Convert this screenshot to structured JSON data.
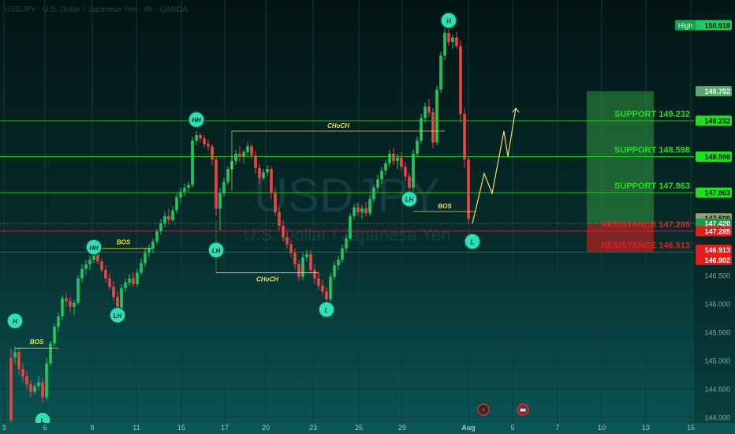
{
  "header": {
    "symbol_line": "USDJPY · U.S. Dollar / Japanese Yen · 4h · OANDA"
  },
  "watermark": {
    "ticker": "USDJPY",
    "name": "U.S. Dollar / Japanese Yen"
  },
  "colors": {
    "up": "#22c55e",
    "down": "#ef4444",
    "support": "#22dd22",
    "resistance": "#e02020",
    "annotation": "#e8e25a",
    "marker_fill": "#2de0b5"
  },
  "chart_data": {
    "type": "candlestick",
    "title": "",
    "xlabel": "",
    "ylabel": "",
    "ylim": [
      143.9,
      151.25
    ],
    "x_ticks": [
      "3",
      "6",
      "9",
      "11",
      "15",
      "17",
      "20",
      "23",
      "25",
      "29",
      "Aug",
      "5",
      "7",
      "10",
      "13",
      "15"
    ],
    "y_ticks": [
      144.0,
      144.5,
      145.0,
      145.5,
      146.0,
      146.5
    ],
    "price_badges": [
      {
        "label": "High",
        "value": "150.918",
        "kind": "high"
      },
      {
        "value": "149.752",
        "kind": "target"
      },
      {
        "value": "149.232",
        "kind": "support"
      },
      {
        "value": "148.598",
        "kind": "support"
      },
      {
        "value": "147.963",
        "kind": "support"
      },
      {
        "value": "147.509",
        "kind": "last"
      },
      {
        "value": "147.420",
        "kind": "level"
      },
      {
        "value": "147.285",
        "kind": "resistance"
      },
      {
        "value": "146.913",
        "kind": "resistance"
      },
      {
        "value": "146.902",
        "kind": "resistance"
      }
    ],
    "levels": [
      {
        "label": "SUPPORT  149.232",
        "value": 149.232,
        "type": "support"
      },
      {
        "label": "SUPPORT  148.598",
        "value": 148.598,
        "type": "support"
      },
      {
        "label": "SUPPORT  147.963",
        "value": 147.963,
        "type": "support"
      },
      {
        "label": "RESISTANCE  147.285",
        "value": 147.285,
        "type": "resistance"
      },
      {
        "label": "RESISTANCE  146.913",
        "value": 146.913,
        "type": "resistance"
      }
    ],
    "zones": [
      {
        "type": "target",
        "from": 147.42,
        "to": 149.752,
        "x_start": 146,
        "x_end": 163
      },
      {
        "type": "stop",
        "from": 146.913,
        "to": 147.42,
        "x_start": 146,
        "x_end": 163
      }
    ],
    "candles": [
      [
        145.05,
        145.22,
        143.72,
        143.95
      ],
      [
        145.05,
        145.25,
        144.95,
        145.15
      ],
      [
        145.15,
        145.22,
        144.75,
        144.85
      ],
      [
        144.85,
        144.95,
        144.62,
        144.72
      ],
      [
        144.72,
        144.82,
        144.5,
        144.58
      ],
      [
        144.58,
        144.65,
        144.35,
        144.45
      ],
      [
        144.45,
        144.6,
        144.4,
        144.55
      ],
      [
        144.55,
        144.72,
        144.48,
        144.62
      ],
      [
        144.62,
        144.7,
        144.25,
        144.35
      ],
      [
        144.35,
        145.05,
        144.3,
        144.95
      ],
      [
        144.95,
        145.35,
        144.9,
        145.3
      ],
      [
        145.3,
        145.65,
        145.25,
        145.6
      ],
      [
        145.6,
        145.85,
        145.5,
        145.78
      ],
      [
        145.78,
        146.15,
        145.72,
        146.1
      ],
      [
        146.1,
        146.2,
        145.95,
        146.05
      ],
      [
        146.05,
        146.12,
        145.85,
        145.95
      ],
      [
        145.95,
        146.08,
        145.8,
        146.02
      ],
      [
        146.02,
        146.5,
        145.98,
        146.45
      ],
      [
        146.45,
        146.7,
        146.38,
        146.62
      ],
      [
        146.62,
        146.78,
        146.52,
        146.7
      ],
      [
        146.7,
        146.85,
        146.6,
        146.78
      ],
      [
        146.78,
        146.98,
        146.72,
        146.9
      ],
      [
        146.9,
        146.98,
        146.7,
        146.75
      ],
      [
        146.75,
        146.8,
        146.55,
        146.6
      ],
      [
        146.6,
        146.68,
        146.38,
        146.45
      ],
      [
        146.45,
        146.55,
        146.25,
        146.3
      ],
      [
        146.3,
        146.4,
        146.05,
        146.12
      ],
      [
        146.12,
        146.22,
        145.72,
        145.85
      ],
      [
        145.85,
        146.35,
        145.8,
        146.28
      ],
      [
        146.28,
        146.45,
        146.2,
        146.38
      ],
      [
        146.38,
        146.52,
        146.32,
        146.45
      ],
      [
        146.45,
        146.55,
        146.3,
        146.35
      ],
      [
        146.35,
        146.62,
        146.3,
        146.55
      ],
      [
        146.55,
        146.8,
        146.5,
        146.72
      ],
      [
        146.72,
        146.98,
        146.65,
        146.9
      ],
      [
        146.9,
        147.05,
        146.82,
        146.98
      ],
      [
        146.98,
        147.15,
        146.9,
        147.1
      ],
      [
        147.1,
        147.32,
        147.05,
        147.28
      ],
      [
        147.28,
        147.5,
        147.22,
        147.42
      ],
      [
        147.42,
        147.62,
        147.35,
        147.55
      ],
      [
        147.55,
        147.68,
        147.4,
        147.48
      ],
      [
        147.48,
        147.72,
        147.45,
        147.65
      ],
      [
        147.65,
        147.95,
        147.6,
        147.88
      ],
      [
        147.88,
        148.05,
        147.78,
        147.98
      ],
      [
        147.98,
        148.12,
        147.9,
        148.05
      ],
      [
        148.05,
        148.15,
        147.98,
        148.1
      ],
      [
        148.1,
        148.95,
        148.05,
        148.88
      ],
      [
        148.88,
        149.05,
        148.8,
        148.98
      ],
      [
        148.98,
        149.02,
        148.85,
        148.92
      ],
      [
        148.92,
        148.98,
        148.75,
        148.82
      ],
      [
        148.82,
        148.9,
        148.7,
        148.78
      ],
      [
        148.78,
        148.82,
        148.45,
        148.55
      ],
      [
        148.55,
        148.6,
        147.55,
        147.68
      ],
      [
        147.68,
        148.05,
        147.3,
        147.95
      ],
      [
        147.95,
        148.22,
        147.9,
        148.15
      ],
      [
        148.15,
        148.42,
        148.1,
        148.38
      ],
      [
        148.38,
        148.6,
        148.32,
        148.52
      ],
      [
        148.52,
        148.72,
        148.45,
        148.65
      ],
      [
        148.65,
        148.78,
        148.5,
        148.6
      ],
      [
        148.6,
        148.72,
        148.48,
        148.68
      ],
      [
        148.68,
        148.85,
        148.62,
        148.78
      ],
      [
        148.78,
        148.82,
        148.55,
        148.62
      ],
      [
        148.62,
        148.7,
        148.3,
        148.4
      ],
      [
        148.4,
        148.48,
        148.12,
        148.22
      ],
      [
        148.22,
        148.38,
        148.18,
        148.32
      ],
      [
        148.32,
        148.45,
        148.25,
        148.38
      ],
      [
        148.38,
        148.42,
        147.85,
        147.95
      ],
      [
        147.95,
        148.05,
        147.55,
        147.62
      ],
      [
        147.62,
        147.7,
        147.3,
        147.38
      ],
      [
        147.38,
        147.48,
        147.1,
        147.18
      ],
      [
        147.18,
        147.28,
        146.98,
        147.05
      ],
      [
        147.05,
        147.12,
        146.82,
        146.9
      ],
      [
        146.9,
        146.98,
        146.62,
        146.7
      ],
      [
        146.7,
        146.78,
        146.4,
        146.48
      ],
      [
        146.48,
        146.9,
        146.42,
        146.82
      ],
      [
        146.82,
        146.95,
        146.75,
        146.88
      ],
      [
        146.88,
        146.95,
        146.52,
        146.6
      ],
      [
        146.6,
        146.7,
        146.35,
        146.45
      ],
      [
        146.45,
        146.55,
        146.25,
        146.32
      ],
      [
        146.32,
        146.42,
        146.15,
        146.22
      ],
      [
        146.22,
        146.3,
        146.0,
        146.08
      ],
      [
        146.08,
        146.55,
        146.05,
        146.48
      ],
      [
        146.48,
        146.75,
        146.42,
        146.68
      ],
      [
        146.68,
        146.85,
        146.6,
        146.78
      ],
      [
        146.78,
        147.05,
        146.72,
        146.98
      ],
      [
        146.98,
        147.22,
        146.92,
        147.15
      ],
      [
        147.15,
        147.6,
        147.1,
        147.55
      ],
      [
        147.55,
        147.75,
        147.48,
        147.7
      ],
      [
        147.7,
        147.78,
        147.55,
        147.62
      ],
      [
        147.62,
        147.75,
        147.5,
        147.68
      ],
      [
        147.68,
        147.8,
        147.55,
        147.6
      ],
      [
        147.6,
        147.92,
        147.55,
        147.85
      ],
      [
        147.85,
        148.1,
        147.8,
        148.05
      ],
      [
        148.05,
        148.28,
        147.98,
        148.2
      ],
      [
        148.2,
        148.42,
        148.12,
        148.35
      ],
      [
        148.35,
        148.55,
        148.28,
        148.48
      ],
      [
        148.48,
        148.72,
        148.42,
        148.65
      ],
      [
        148.65,
        148.75,
        148.45,
        148.52
      ],
      [
        148.52,
        148.65,
        148.38,
        148.58
      ],
      [
        148.58,
        148.68,
        148.35,
        148.42
      ],
      [
        148.42,
        148.5,
        148.15,
        148.25
      ],
      [
        148.25,
        148.32,
        147.95,
        148.05
      ],
      [
        148.05,
        148.72,
        147.98,
        148.65
      ],
      [
        148.65,
        148.95,
        148.6,
        148.88
      ],
      [
        148.88,
        149.35,
        148.82,
        149.28
      ],
      [
        149.28,
        149.55,
        149.2,
        149.48
      ],
      [
        149.48,
        149.62,
        149.3,
        149.38
      ],
      [
        149.38,
        149.45,
        148.75,
        148.85
      ],
      [
        148.85,
        149.85,
        148.8,
        149.78
      ],
      [
        149.78,
        150.45,
        149.72,
        150.38
      ],
      [
        150.38,
        150.85,
        150.3,
        150.78
      ],
      [
        150.78,
        150.92,
        150.55,
        150.62
      ],
      [
        150.62,
        150.75,
        150.5,
        150.7
      ],
      [
        150.7,
        150.8,
        150.5,
        150.55
      ],
      [
        150.55,
        150.65,
        149.2,
        149.35
      ],
      [
        149.35,
        149.45,
        148.4,
        148.55
      ],
      [
        148.55,
        148.6,
        147.4,
        147.5
      ]
    ],
    "annotations": [
      {
        "text": "BOS",
        "kind": "bos"
      },
      {
        "text": "BOS",
        "kind": "bos"
      },
      {
        "text": "BOS",
        "kind": "bos"
      },
      {
        "text": "CHoCH",
        "kind": "choch"
      },
      {
        "text": "CHoCH",
        "kind": "choch"
      }
    ],
    "swing_markers": [
      {
        "text": "H",
        "i": 1
      },
      {
        "text": "L",
        "i": 8
      },
      {
        "text": "HH",
        "i": 21
      },
      {
        "text": "LH",
        "i": 27
      },
      {
        "text": "HH",
        "i": 47
      },
      {
        "text": "LH",
        "i": 52
      },
      {
        "text": "L",
        "i": 80
      },
      {
        "text": "LH",
        "i": 101
      },
      {
        "text": "H",
        "i": 111
      },
      {
        "text": "L",
        "i": 117
      }
    ],
    "projection": [
      [
        117,
        147.42
      ],
      [
        120,
        148.3
      ],
      [
        122,
        147.95
      ],
      [
        125,
        149.05
      ],
      [
        126,
        148.6
      ],
      [
        128,
        149.45
      ]
    ]
  }
}
